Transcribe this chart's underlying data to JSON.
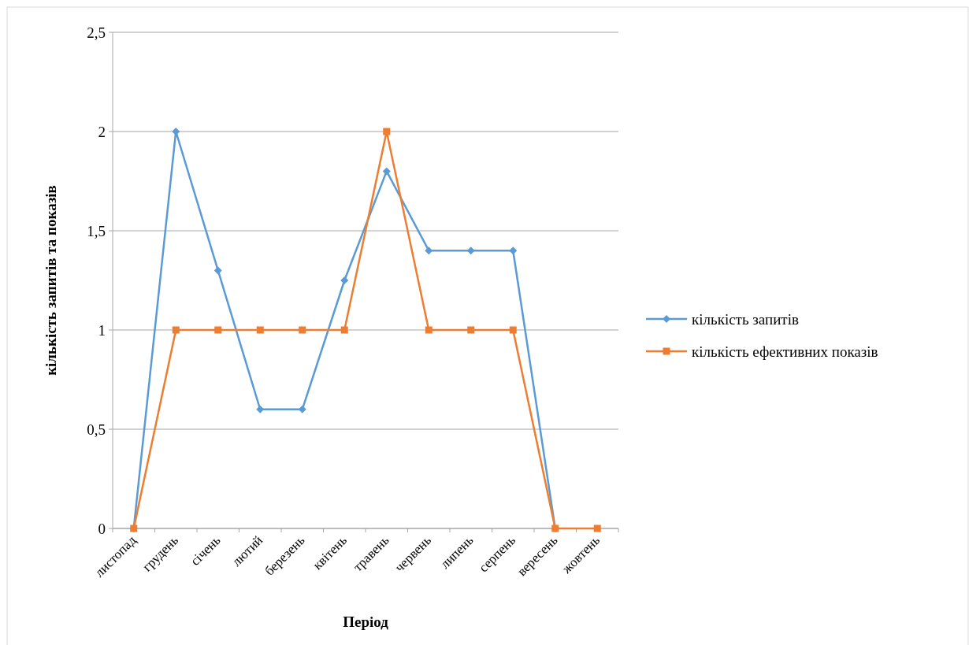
{
  "chart_data": {
    "type": "line",
    "xlabel": "Період",
    "ylabel": "кількість запитів та показів",
    "categories": [
      "листопад",
      "грудень",
      "січень",
      "лютий",
      "березень",
      "квітень",
      "травень",
      "червень",
      "липень",
      "серпень",
      "вересень",
      "жовтень"
    ],
    "series": [
      {
        "name": "кількість запитів",
        "color": "#5b9bd5",
        "marker": "diamond",
        "values": [
          0,
          2,
          1.3,
          0.6,
          0.6,
          1.25,
          1.8,
          1.4,
          1.4,
          1.4,
          0,
          null
        ]
      },
      {
        "name": "кількість ефективних показів",
        "color": "#ed7d31",
        "marker": "square",
        "values": [
          0,
          1,
          1,
          1,
          1,
          1,
          2,
          1,
          1,
          1,
          0,
          0
        ]
      }
    ],
    "ylim": [
      0,
      2.5
    ],
    "yticks": [
      0,
      {
        "value": 0.5,
        "label": "0,5"
      },
      1,
      {
        "value": 1.5,
        "label": "1,5"
      },
      2,
      {
        "value": 2.5,
        "label": "2,5"
      }
    ],
    "grid": "y",
    "legend": "right",
    "line_style": "solid"
  }
}
